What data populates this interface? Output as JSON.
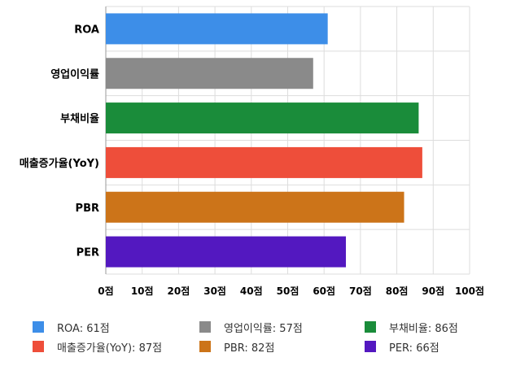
{
  "chart_data": {
    "type": "bar",
    "orientation": "horizontal",
    "categories": [
      "ROA",
      "영업이익률",
      "부채비율",
      "매출증가율(YoY)",
      "PBR",
      "PER"
    ],
    "values": [
      61,
      57,
      86,
      87,
      82,
      66
    ],
    "colors": [
      "#3d8ee8",
      "#8a8a8a",
      "#1a8c3a",
      "#ee4e3a",
      "#cc7419",
      "#5318c0"
    ],
    "xlim": [
      0,
      100
    ],
    "x_ticks": [
      0,
      10,
      20,
      30,
      40,
      50,
      60,
      70,
      80,
      90,
      100
    ],
    "tick_suffix": "점",
    "grid": true,
    "legend_position": "bottom",
    "legend": [
      {
        "label": "ROA: 61점",
        "color": "#3d8ee8"
      },
      {
        "label": "영업이익률: 57점",
        "color": "#8a8a8a"
      },
      {
        "label": "부채비율: 86점",
        "color": "#1a8c3a"
      },
      {
        "label": "매출증가율(YoY): 87점",
        "color": "#ee4e3a"
      },
      {
        "label": "PBR: 82점",
        "color": "#cc7419"
      },
      {
        "label": "PER: 66점",
        "color": "#5318c0"
      }
    ]
  }
}
